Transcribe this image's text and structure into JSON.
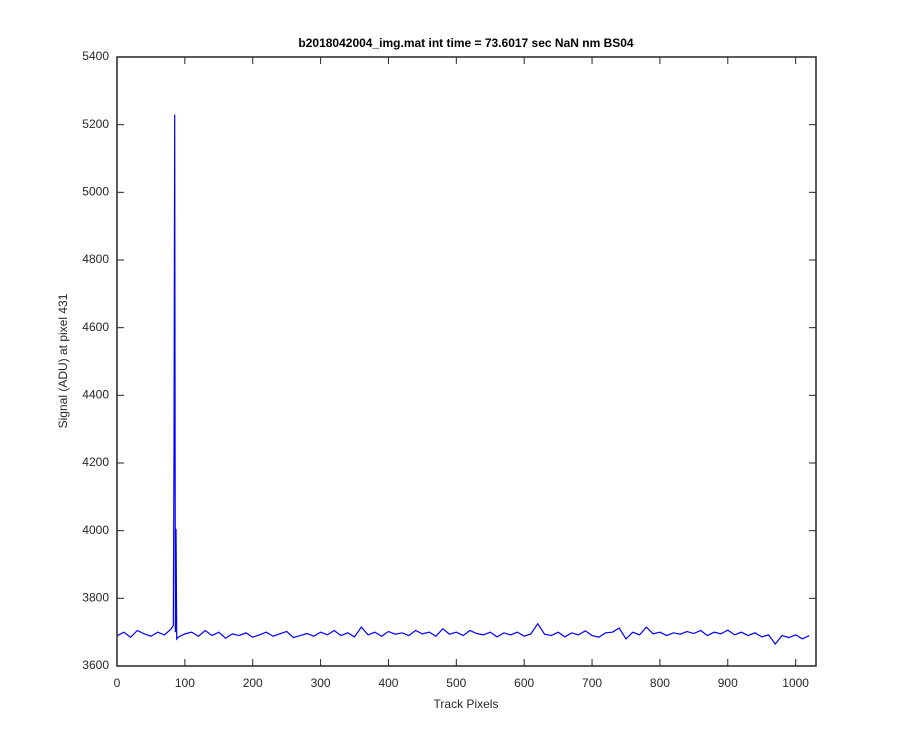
{
  "chart_data": {
    "type": "line",
    "title": "b2018042004_img.mat int time = 73.6017 sec  NaN nm BS04",
    "x_label": "Track Pixels",
    "y_label": "Signal (ADU) at pixel 431",
    "x": [
      1,
      10,
      20,
      30,
      40,
      50,
      60,
      70,
      80,
      83,
      84,
      85,
      86,
      87,
      88,
      90,
      100,
      110,
      120,
      130,
      140,
      150,
      160,
      170,
      180,
      190,
      200,
      210,
      220,
      230,
      240,
      250,
      260,
      270,
      280,
      290,
      300,
      310,
      320,
      330,
      340,
      350,
      360,
      370,
      380,
      390,
      400,
      410,
      420,
      430,
      440,
      450,
      460,
      470,
      480,
      490,
      500,
      510,
      520,
      530,
      540,
      550,
      560,
      570,
      580,
      590,
      600,
      610,
      620,
      630,
      640,
      650,
      660,
      670,
      680,
      690,
      700,
      710,
      720,
      730,
      740,
      750,
      760,
      770,
      780,
      790,
      800,
      810,
      820,
      830,
      840,
      850,
      860,
      870,
      880,
      890,
      900,
      910,
      920,
      930,
      940,
      950,
      960,
      970,
      980,
      990,
      1000,
      1010,
      1020
    ],
    "series": [
      {
        "color": "#0000ff",
        "values": [
          3690,
          3700,
          3685,
          3705,
          3695,
          3688,
          3700,
          3692,
          3710,
          3720,
          4240,
          5230,
          3700,
          4005,
          3680,
          3685,
          3695,
          3700,
          3688,
          3705,
          3690,
          3700,
          3682,
          3695,
          3690,
          3698,
          3685,
          3692,
          3700,
          3688,
          3695,
          3702,
          3684,
          3690,
          3696,
          3688,
          3700,
          3692,
          3705,
          3690,
          3698,
          3686,
          3715,
          3692,
          3700,
          3688,
          3702,
          3694,
          3698,
          3690,
          3705,
          3695,
          3700,
          3688,
          3710,
          3694,
          3700,
          3690,
          3705,
          3696,
          3692,
          3700,
          3686,
          3698,
          3692,
          3700,
          3688,
          3695,
          3725,
          3694,
          3690,
          3700,
          3686,
          3698,
          3692,
          3704,
          3690,
          3685,
          3698,
          3700,
          3712,
          3680,
          3700,
          3692,
          3715,
          3695,
          3700,
          3690,
          3698,
          3694,
          3702,
          3696,
          3705,
          3690,
          3700,
          3695,
          3706,
          3692,
          3700,
          3690,
          3698,
          3686,
          3692,
          3665,
          3690,
          3684,
          3692,
          3680,
          3690
        ]
      }
    ],
    "xlim": [
      0,
      1030
    ],
    "ylim": [
      3600,
      5400
    ],
    "xticks": [
      0,
      100,
      200,
      300,
      400,
      500,
      600,
      700,
      800,
      900,
      1000
    ],
    "yticks": [
      3600,
      3800,
      4000,
      4200,
      4400,
      4600,
      4800,
      5000,
      5200,
      5400
    ]
  }
}
